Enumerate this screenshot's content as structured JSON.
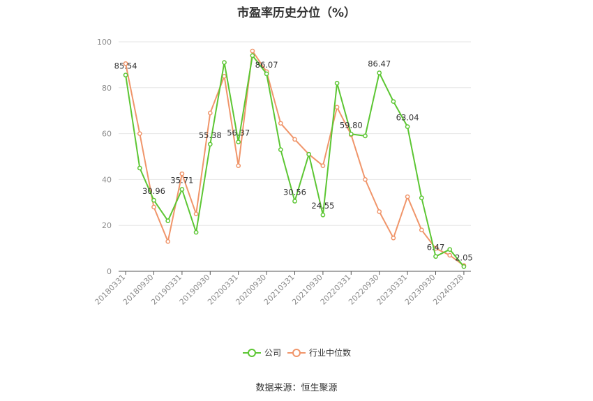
{
  "title": "市盈率历史分位（%）",
  "source": "数据来源：恒生聚源",
  "colors": {
    "company": "#5cc633",
    "industry": "#f0956a",
    "grid": "#e6e6e6",
    "axis": "#555555"
  },
  "chart_data": {
    "type": "line",
    "title": "市盈率历史分位（%）",
    "ylim": [
      0,
      100
    ],
    "yticks": [
      0,
      20,
      40,
      60,
      80,
      100
    ],
    "grid": true,
    "legend_position": "bottom-center",
    "x": [
      "20180331",
      "20180630",
      "20180930",
      "20181231",
      "20190331",
      "20190630",
      "20190930",
      "20191231",
      "20200331",
      "20200630",
      "20200930",
      "20201231",
      "20210331",
      "20210630",
      "20210930",
      "20211231",
      "20220331",
      "20220630",
      "20220930",
      "20221231",
      "20230331",
      "20230630",
      "20230930",
      "20231231",
      "20240328"
    ],
    "xtick_labels": [
      "20180331",
      "20180930",
      "20190331",
      "20190930",
      "20200331",
      "20200930",
      "20210331",
      "20210930",
      "20220331",
      "20220930",
      "20230331",
      "20230930",
      "20240328"
    ],
    "series": [
      {
        "name": "公司",
        "values": [
          85.54,
          45.0,
          30.96,
          22.0,
          35.71,
          17.0,
          55.38,
          91.0,
          56.37,
          94.0,
          86.07,
          53.0,
          30.56,
          51.0,
          24.55,
          82.0,
          59.8,
          59.0,
          86.47,
          74.0,
          63.04,
          32.0,
          6.47,
          9.5,
          2.05
        ],
        "data_labels": [
          {
            "index": 0,
            "text": "85.54"
          },
          {
            "index": 2,
            "text": "30.96"
          },
          {
            "index": 4,
            "text": "35.71"
          },
          {
            "index": 6,
            "text": "55.38"
          },
          {
            "index": 8,
            "text": "56.37"
          },
          {
            "index": 10,
            "text": "86.07"
          },
          {
            "index": 12,
            "text": "30.56"
          },
          {
            "index": 14,
            "text": "24.55"
          },
          {
            "index": 16,
            "text": "59.80"
          },
          {
            "index": 18,
            "text": "86.47"
          },
          {
            "index": 20,
            "text": "63.04"
          },
          {
            "index": 22,
            "text": "6.47"
          },
          {
            "index": 24,
            "text": "2.05"
          }
        ]
      },
      {
        "name": "行业中位数",
        "values": [
          90.5,
          60.0,
          28.0,
          13.0,
          42.5,
          25.0,
          69.0,
          85.0,
          46.0,
          96.0,
          87.0,
          64.5,
          57.5,
          51.0,
          46.0,
          71.5,
          59.5,
          40.0,
          26.0,
          14.5,
          32.5,
          18.0,
          10.0,
          7.0,
          2.5
        ]
      }
    ]
  }
}
